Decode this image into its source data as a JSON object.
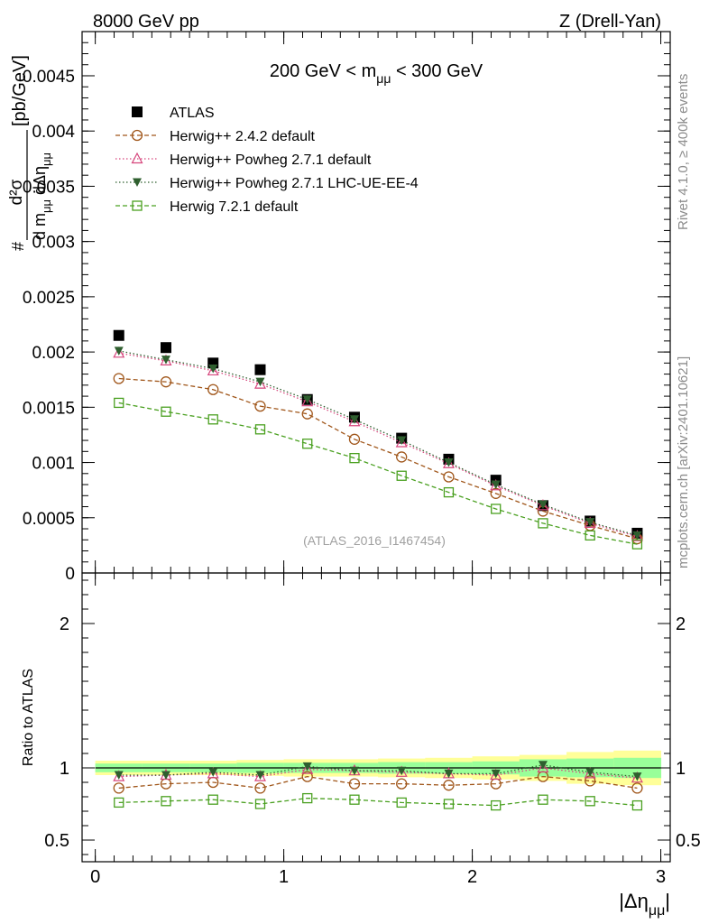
{
  "header": {
    "energy_label": "8000 GeV pp",
    "process_label": "Z (Drell-Yan)",
    "cut_label": "200 GeV < m",
    "cut_sub": "μμ",
    "cut_suffix": " < 300 GeV",
    "watermark": "(ATLAS_2016_I1467454)",
    "side_rivet": "Rivet 4.1.0, ≥ 400k events",
    "side_mcplots": "mcplots.cern.ch [arXiv:2401.10621]"
  },
  "y_axis_top": {
    "label_hash": "#",
    "label_num": "d²σ",
    "label_den": "d m",
    "label_den_sub": "μμ",
    "label_den2": " dΔη",
    "label_den2_sub": "μμ",
    "label_units": "[pb/GeV]"
  },
  "y_axis_bottom": {
    "label": "Ratio to ATLAS"
  },
  "x_axis": {
    "label": "|Δη",
    "label_sub": "μμ",
    "label_end": "|"
  },
  "chart_data": [
    {
      "type": "scatter",
      "panel": "main",
      "xlim": [
        -0.07,
        3.05
      ],
      "ylim": [
        0,
        0.0049
      ],
      "yticks": [
        0,
        0.0005,
        0.001,
        0.0015,
        0.002,
        0.0025,
        0.003,
        0.0035,
        0.004,
        0.0045
      ],
      "ytick_labels": [
        "0",
        "0.0005",
        "0.001",
        "0.0015",
        "0.002",
        "0.0025",
        "0.003",
        "0.0035",
        "0.004",
        "0.0045"
      ],
      "xticks": [
        0,
        1,
        2,
        3
      ],
      "xtick_labels": [
        "0",
        "1",
        "2",
        "3"
      ],
      "x": [
        0.125,
        0.375,
        0.625,
        0.875,
        1.125,
        1.375,
        1.625,
        1.875,
        2.125,
        2.375,
        2.625,
        2.875
      ],
      "legend_position": "top-left",
      "series": [
        {
          "name": "ATLAS",
          "marker": "square-filled",
          "color": "#000000",
          "line": "none",
          "values": [
            0.00215,
            0.00204,
            0.0019,
            0.00184,
            0.00157,
            0.00141,
            0.00122,
            0.00103,
            0.00084,
            0.00061,
            0.00047,
            0.00036
          ]
        },
        {
          "name": "Herwig++ 2.4.2 default",
          "marker": "circle-open",
          "color": "#a0561a",
          "line": "dashed",
          "values": [
            0.00176,
            0.00173,
            0.00166,
            0.00151,
            0.00144,
            0.00121,
            0.00105,
            0.00087,
            0.00072,
            0.00056,
            0.00043,
            0.00031
          ]
        },
        {
          "name": "Herwig++ Powheg 2.7.1 default",
          "marker": "triangle-up-open",
          "color": "#d6457c",
          "line": "dotted",
          "values": [
            0.00199,
            0.00192,
            0.00183,
            0.00171,
            0.00155,
            0.00137,
            0.00118,
            0.00099,
            0.00079,
            0.00061,
            0.00045,
            0.00033
          ]
        },
        {
          "name": "Herwig++ Powheg 2.7.1 LHC-UE-EE-4",
          "marker": "triangle-down-filled",
          "color": "#2f5f2f",
          "line": "dotted",
          "values": [
            0.00201,
            0.00193,
            0.00185,
            0.00173,
            0.00157,
            0.00139,
            0.0012,
            0.001,
            0.0008,
            0.00062,
            0.00046,
            0.00034
          ]
        },
        {
          "name": "Herwig 7.2.1 default",
          "marker": "square-open",
          "color": "#4aa020",
          "line": "dashed",
          "values": [
            0.00154,
            0.00146,
            0.00139,
            0.0013,
            0.00117,
            0.00104,
            0.00088,
            0.00073,
            0.00058,
            0.00045,
            0.00034,
            0.00026
          ]
        }
      ]
    },
    {
      "type": "scatter",
      "panel": "ratio",
      "ylabel": "Ratio to ATLAS",
      "ylim": [
        0.35,
        2.35
      ],
      "yticks": [
        0.5,
        1,
        2
      ],
      "ytick_labels": [
        "0.5",
        "1",
        "2"
      ],
      "xlim": [
        -0.07,
        3.05
      ],
      "x": [
        0.125,
        0.375,
        0.625,
        0.875,
        1.125,
        1.375,
        1.625,
        1.875,
        2.125,
        2.375,
        2.625,
        2.875
      ],
      "bin_edges": [
        0,
        0.25,
        0.5,
        0.75,
        1.0,
        1.25,
        1.5,
        1.75,
        2.0,
        2.25,
        2.5,
        2.75,
        3.0
      ],
      "band_stat_halfwidth": [
        0.03,
        0.03,
        0.03,
        0.035,
        0.035,
        0.035,
        0.04,
        0.04,
        0.045,
        0.06,
        0.065,
        0.07
      ],
      "band_total_halfwidth": [
        0.05,
        0.05,
        0.05,
        0.055,
        0.06,
        0.06,
        0.065,
        0.07,
        0.08,
        0.09,
        0.11,
        0.12
      ],
      "series": [
        {
          "name": "Herwig++ 2.4.2 default",
          "marker": "circle-open",
          "color": "#a0561a",
          "line": "dashed",
          "values": [
            0.86,
            0.89,
            0.9,
            0.86,
            0.94,
            0.89,
            0.89,
            0.88,
            0.89,
            0.94,
            0.91,
            0.86
          ]
        },
        {
          "name": "Herwig++ Powheg 2.7.1 default",
          "marker": "triangle-up-open",
          "color": "#d6457c",
          "line": "dotted",
          "values": [
            0.94,
            0.95,
            0.96,
            0.94,
            0.99,
            0.98,
            0.97,
            0.96,
            0.95,
            1.0,
            0.96,
            0.93
          ]
        },
        {
          "name": "Herwig++ Powheg 2.7.1 LHC-UE-EE-4",
          "marker": "triangle-down-filled",
          "color": "#2f5f2f",
          "line": "dotted",
          "values": [
            0.95,
            0.95,
            0.97,
            0.95,
            1.01,
            0.98,
            0.98,
            0.96,
            0.96,
            1.02,
            0.97,
            0.94
          ]
        },
        {
          "name": "Herwig 7.2.1 default",
          "marker": "square-open",
          "color": "#4aa020",
          "line": "dashed",
          "values": [
            0.76,
            0.77,
            0.78,
            0.75,
            0.79,
            0.78,
            0.76,
            0.75,
            0.74,
            0.78,
            0.77,
            0.74
          ]
        }
      ]
    }
  ]
}
